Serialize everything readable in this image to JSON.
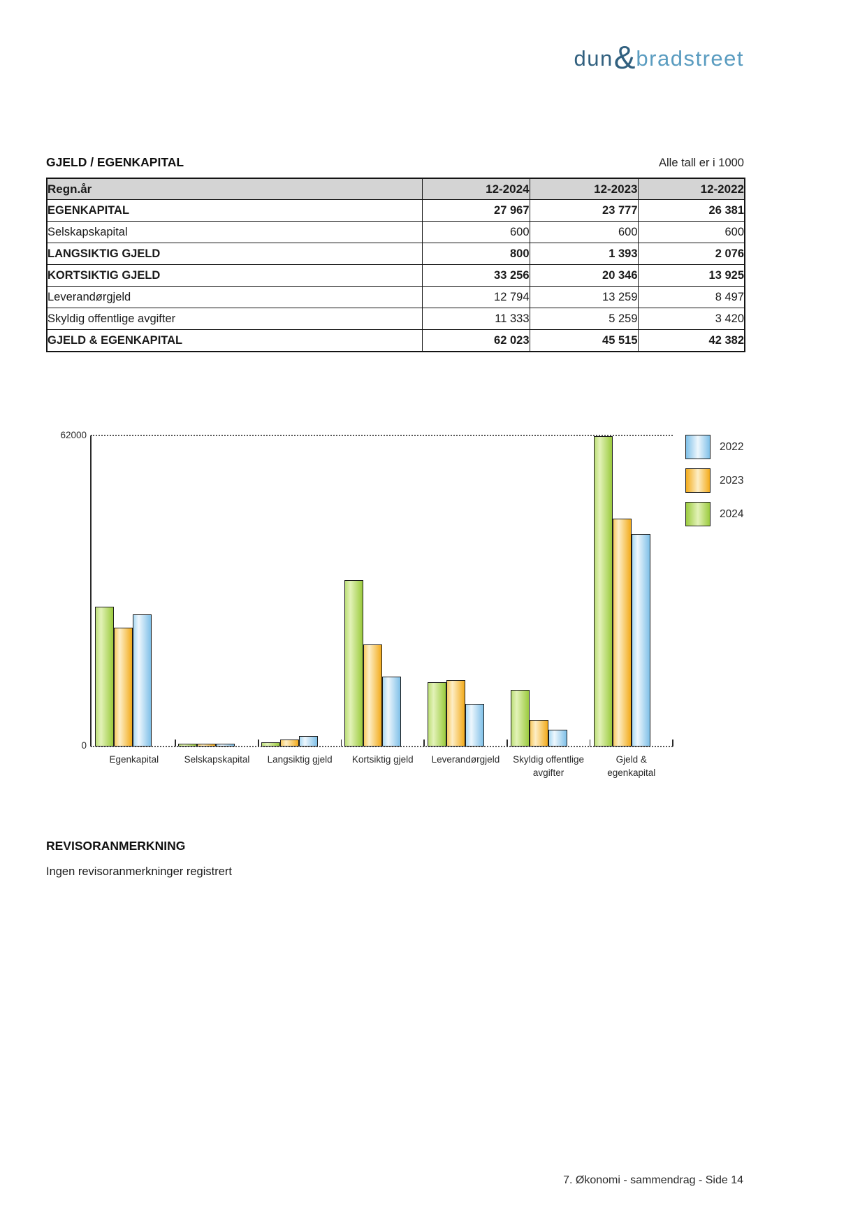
{
  "logo": {
    "part1": "dun",
    "amp": "&",
    "part2": "bradstreet"
  },
  "section": {
    "title": "GJELD / EGENKAPITAL",
    "note": "Alle tall er i 1000"
  },
  "table": {
    "headers": [
      "Regn.år",
      "12-2024",
      "12-2023",
      "12-2022"
    ],
    "rows": [
      {
        "label": "EGENKAPITAL",
        "bold": true,
        "values": [
          "27 967",
          "23 777",
          "26 381"
        ]
      },
      {
        "label": "Selskapskapital",
        "bold": false,
        "values": [
          "600",
          "600",
          "600"
        ]
      },
      {
        "label": "LANGSIKTIG GJELD",
        "bold": true,
        "values": [
          "800",
          "1 393",
          "2 076"
        ]
      },
      {
        "label": "KORTSIKTIG GJELD",
        "bold": true,
        "values": [
          "33 256",
          "20 346",
          "13 925"
        ]
      },
      {
        "label": "Leverandørgjeld",
        "bold": false,
        "values": [
          "12 794",
          "13 259",
          "8 497"
        ]
      },
      {
        "label": "Skyldig offentlige avgifter",
        "bold": false,
        "values": [
          "11 333",
          "5 259",
          "3 420"
        ]
      },
      {
        "label": "GJELD & EGENKAPITAL",
        "bold": true,
        "values": [
          "62 023",
          "45 515",
          "42 382"
        ]
      }
    ]
  },
  "chart_data": {
    "type": "bar",
    "title": "",
    "xlabel": "",
    "ylabel": "",
    "ylim": [
      0,
      62000
    ],
    "yticks": [
      0,
      62000
    ],
    "ytick_labels": {
      "top": "62000",
      "bottom": "0"
    },
    "grid": "top-gridline-dotted",
    "legend_position": "right",
    "categories": [
      "Egenkapital",
      "Selskapskapital",
      "Langsiktig gjeld",
      "Kortsiktig gjeld",
      "Leverandørgjeld",
      "Skyldig offentlige avgifter",
      "Gjeld & egenkapital"
    ],
    "category_label_lines": [
      [
        "Egenkapital"
      ],
      [
        "Selskapskapital"
      ],
      [
        "Langsiktig gjeld"
      ],
      [
        "Kortsiktig gjeld"
      ],
      [
        "Leverandørgjeld"
      ],
      [
        "Skyldig offentlige",
        "avgifter"
      ],
      [
        "Gjeld &",
        "egenkapital"
      ]
    ],
    "series": [
      {
        "name": "2024",
        "values": [
          27967,
          600,
          800,
          33256,
          12794,
          11333,
          62023
        ],
        "palette": {
          "mid": "#bcdf78",
          "light": "#e3f2b8",
          "dark": "#9bcb3e"
        }
      },
      {
        "name": "2023",
        "values": [
          23777,
          600,
          1393,
          20346,
          13259,
          5259,
          45515
        ],
        "palette": {
          "mid": "#f8ca63",
          "light": "#fdeec6",
          "dark": "#f3ab1b"
        }
      },
      {
        "name": "2022",
        "values": [
          26381,
          600,
          2076,
          13925,
          8497,
          3420,
          42382
        ],
        "palette": {
          "mid": "#abd9f3",
          "light": "#eef7fd",
          "dark": "#7fc0e8"
        }
      }
    ],
    "legend_order": [
      "2022",
      "2023",
      "2024"
    ]
  },
  "revisor": {
    "title": "REVISORANMERKNING",
    "body": "Ingen revisoranmerkninger registrert"
  },
  "footer": {
    "text": "7. Økonomi - sammendrag - Side 14"
  },
  "colors": {
    "logo_dark_blue": "#31607f",
    "logo_light_blue": "#5a9cc0",
    "table_header_bg": "#d4d4d4",
    "border_black": "#141414"
  }
}
